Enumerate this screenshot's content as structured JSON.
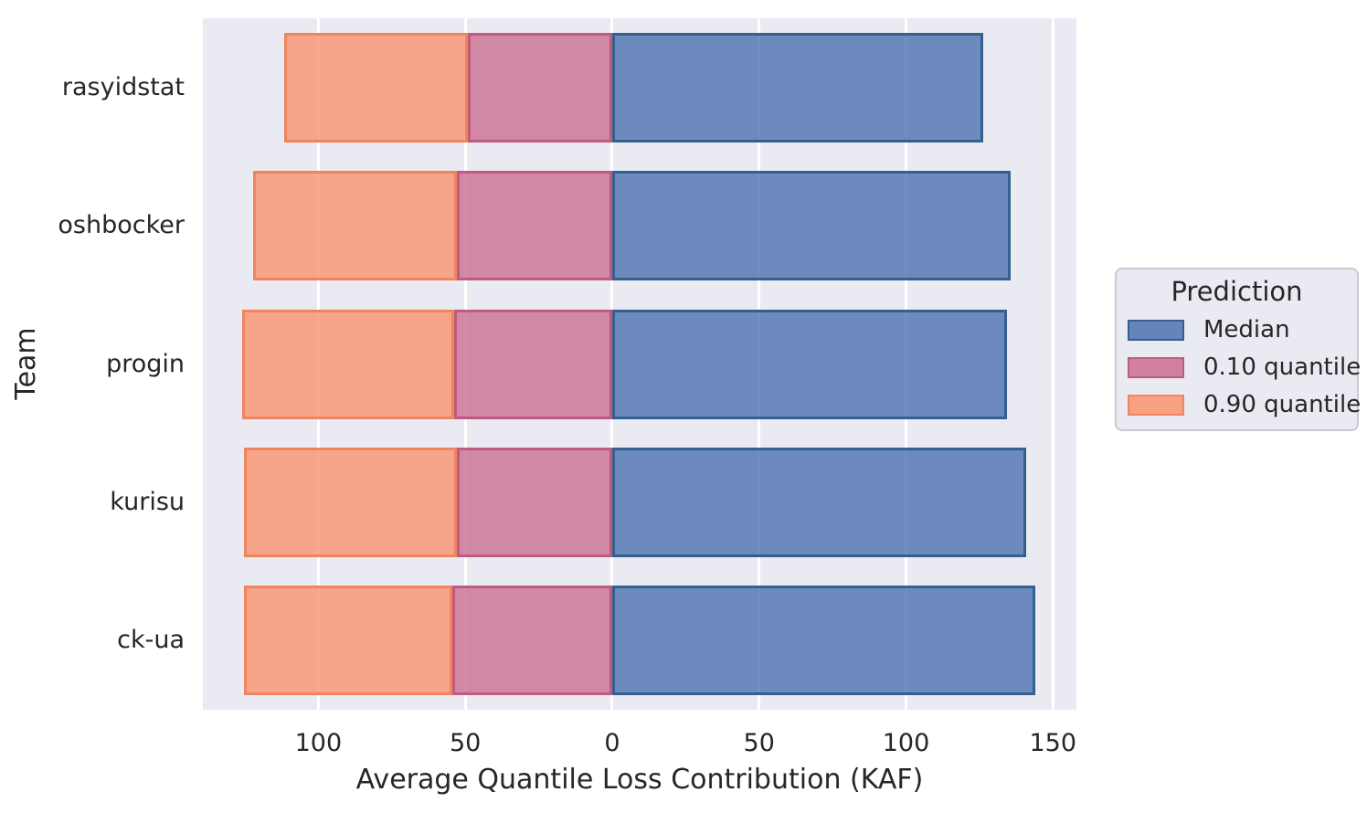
{
  "figure": {
    "background": "#ffffff",
    "plot_background": "#eaeaf2",
    "grid_color": "#ffffff",
    "text_color": "#262626",
    "bar_alpha": 0.8,
    "legend_background": "#eaeaf2",
    "legend_border": "#cacad3"
  },
  "chart_data": {
    "type": "bar",
    "orientation": "horizontal",
    "stacked": true,
    "diverging": true,
    "title": "",
    "xlabel": "Average Quantile Loss Contribution (KAF)",
    "ylabel": "Team",
    "categories": [
      "rasyidstat",
      "oshbocker",
      "progin",
      "kurisu",
      "ck-ua"
    ],
    "series": [
      {
        "name": "Median",
        "side": "right",
        "color": "#4c72b0",
        "edge_color": "#35608d",
        "values": [
          126.3,
          135.5,
          134.3,
          141.0,
          144.1
        ]
      },
      {
        "name": "0.10 quantile",
        "side": "left_inner",
        "color": "#ca6f90",
        "edge_color": "#c05b80",
        "values": [
          49.1,
          52.9,
          53.9,
          52.9,
          54.4
        ]
      },
      {
        "name": "0.90 quantile",
        "side": "left_outer",
        "color": "#f9946f",
        "edge_color": "#f0845f",
        "values": [
          62.6,
          69.3,
          72.1,
          72.4,
          70.8
        ]
      }
    ],
    "xlim": [
      -139.3,
      158.0
    ],
    "x_ticks": [
      {
        "value": -100,
        "label": "100"
      },
      {
        "value": -50,
        "label": "50"
      },
      {
        "value": 0,
        "label": "0"
      },
      {
        "value": 50,
        "label": "50"
      },
      {
        "value": 100,
        "label": "100"
      },
      {
        "value": 150,
        "label": "150"
      }
    ],
    "grid": true,
    "legend": {
      "title": "Prediction",
      "position": "right",
      "entries": [
        "Median",
        "0.10 quantile",
        "0.90 quantile"
      ]
    }
  }
}
